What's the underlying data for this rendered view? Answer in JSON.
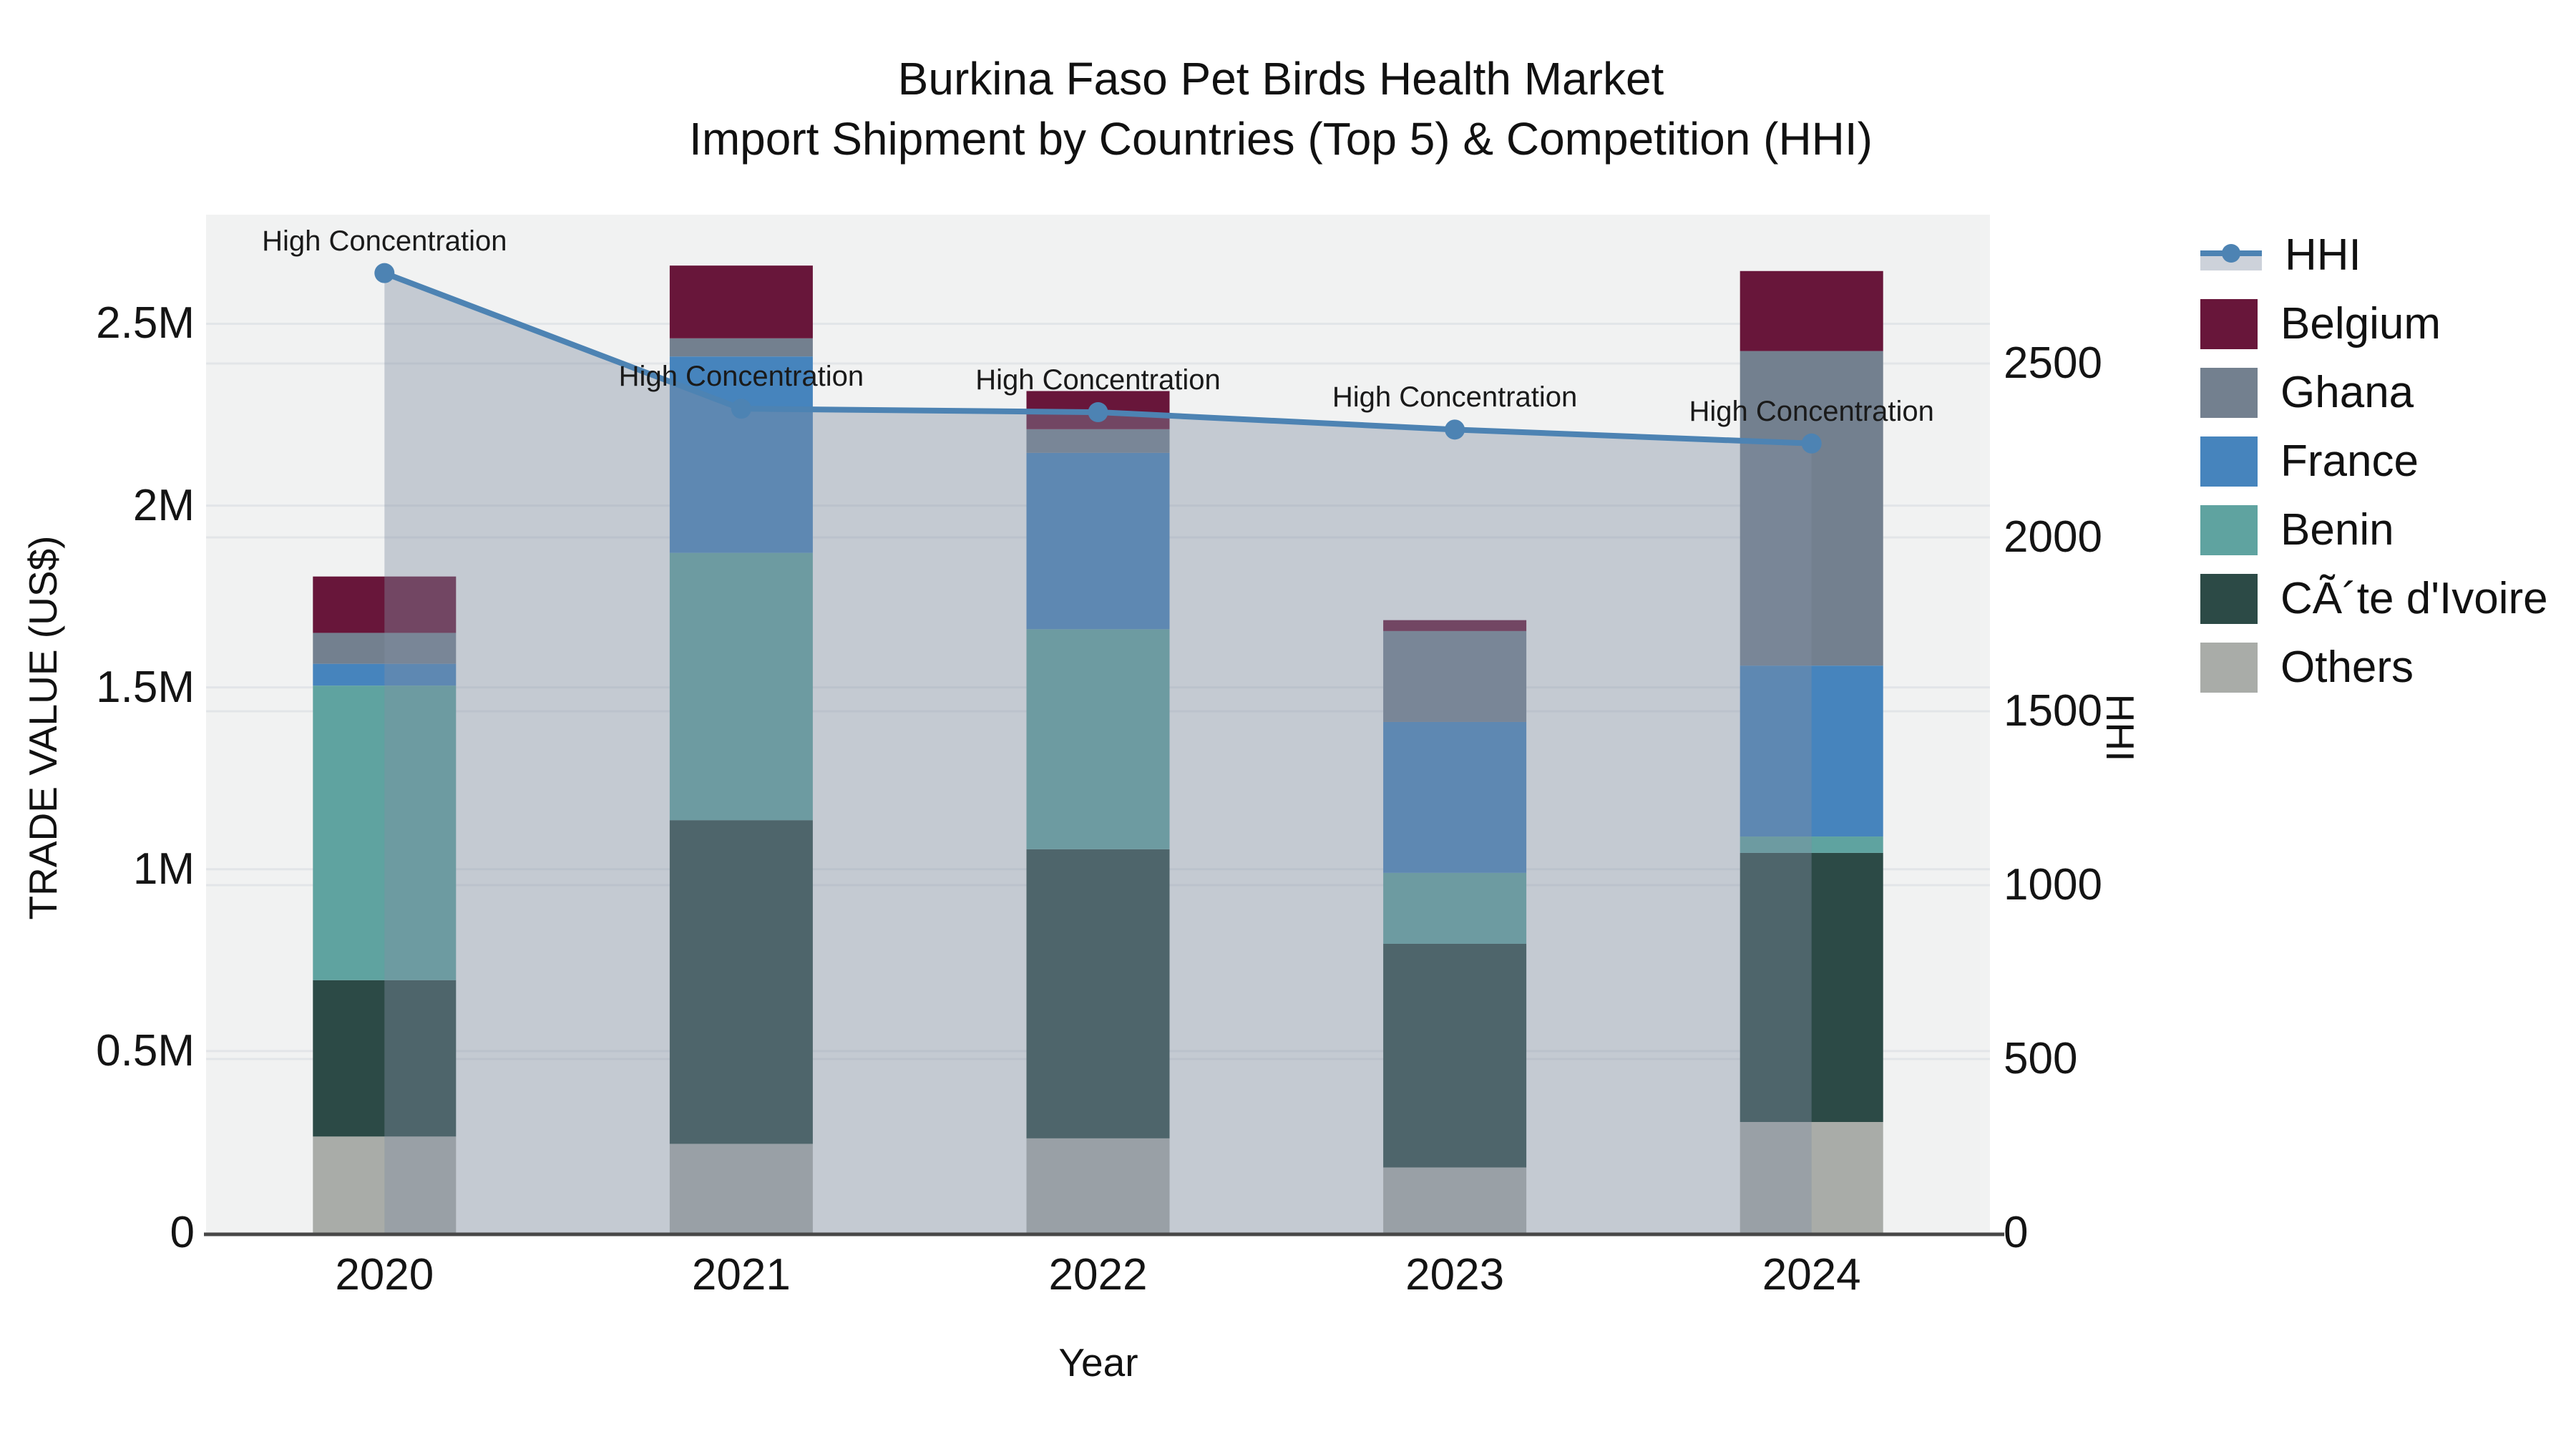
{
  "chart_data": {
    "type": [
      "bar",
      "line"
    ],
    "title_line1": "Burkina Faso Pet Birds Health Market",
    "title_line2": "Import Shipment by Countries (Top 5) & Competition (HHI)",
    "xlabel": "Year",
    "ylabel_left": "TRADE VALUE (US$)",
    "ylabel_right": "HHI",
    "categories": [
      "2020",
      "2021",
      "2022",
      "2023",
      "2024"
    ],
    "stack_order": [
      "Others",
      "CÃ´te d'Ivoire",
      "Benin",
      "France",
      "Ghana",
      "Belgium"
    ],
    "series": [
      {
        "name": "Belgium",
        "color": "#68163a",
        "values": [
          155000,
          200000,
          105000,
          30000,
          220000
        ]
      },
      {
        "name": "Ghana",
        "color": "#73808f",
        "values": [
          85000,
          50000,
          65000,
          250000,
          865000
        ]
      },
      {
        "name": "France",
        "color": "#4684bd",
        "values": [
          60000,
          540000,
          485000,
          415000,
          470000
        ]
      },
      {
        "name": "Benin",
        "color": "#5fa3a0",
        "values": [
          810000,
          735000,
          605000,
          195000,
          45000
        ]
      },
      {
        "name": "CÃ´te d'Ivoire",
        "color": "#2c4a46",
        "values": [
          430000,
          890000,
          795000,
          615000,
          740000
        ]
      },
      {
        "name": "Others",
        "color": "#a9aca8",
        "values": [
          265000,
          245000,
          260000,
          180000,
          305000
        ]
      }
    ],
    "hhi": {
      "name": "HHI",
      "line_color": "#4d83b3",
      "fill_color": "rgba(130,142,163,0.40)",
      "values": [
        2760,
        2370,
        2360,
        2310,
        2270
      ]
    },
    "point_annotations": [
      "High Concentration",
      "High Concentration",
      "High Concentration",
      "High Concentration",
      "High Concentration"
    ],
    "y_left_ticks": [
      {
        "label": "0",
        "value": 0
      },
      {
        "label": "0.5M",
        "value": 500000
      },
      {
        "label": "1M",
        "value": 1000000
      },
      {
        "label": "1.5M",
        "value": 1500000
      },
      {
        "label": "2M",
        "value": 2000000
      },
      {
        "label": "2.5M",
        "value": 2500000
      }
    ],
    "y_right_ticks": [
      {
        "label": "0",
        "value": 0
      },
      {
        "label": "500",
        "value": 500
      },
      {
        "label": "1000",
        "value": 1000
      },
      {
        "label": "1500",
        "value": 1500
      },
      {
        "label": "2000",
        "value": 2000
      },
      {
        "label": "2500",
        "value": 2500
      }
    ],
    "ylim_left": [
      0,
      2800000
    ],
    "ylim_right": [
      0,
      2928
    ],
    "grid": true,
    "legend_position": "right",
    "plot_bg_color": "#f1f2f2",
    "grid_color": "#e2e5e8",
    "axis_line_color": "#474747"
  }
}
